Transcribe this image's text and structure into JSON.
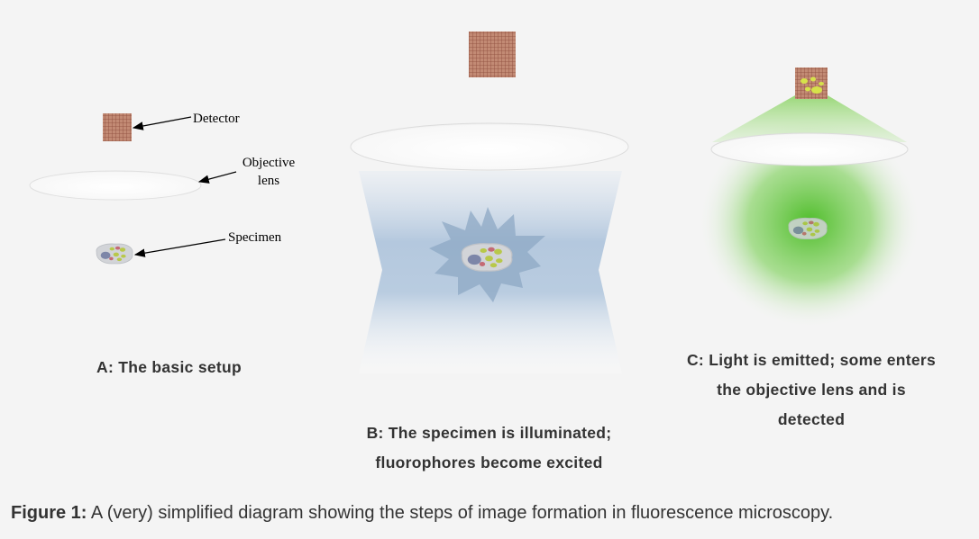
{
  "panel_a": {
    "caption": "A: The basic setup",
    "labels": {
      "detector": "Detector",
      "objective_line1": "Objective",
      "objective_line2": "lens",
      "specimen": "Specimen"
    }
  },
  "panel_b": {
    "caption_line1": "B: The specimen is illuminated;",
    "caption_line2": "fluorophores become excited"
  },
  "panel_c": {
    "caption_line1": "C: Light is emitted; some enters",
    "caption_line2": "the objective lens and is",
    "caption_line3": "detected"
  },
  "figure_caption": {
    "label": "Figure 1:",
    "text": " A (very) simplified diagram showing the steps of image formation in fluorescence microscopy."
  },
  "colors": {
    "detector": "#b9806c",
    "detector_grid": "#8e4a3a",
    "illumination": "#b8cde3",
    "emission": "#5cc43a",
    "lens": "#ffffff",
    "text": "#333333"
  }
}
